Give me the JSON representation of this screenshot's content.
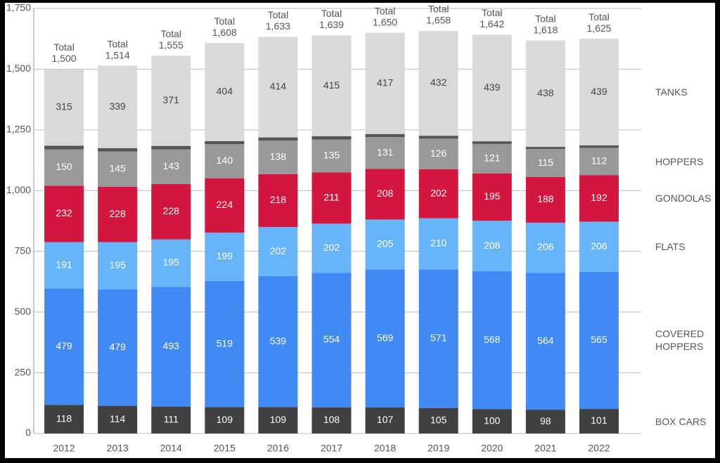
{
  "chart_data": {
    "type": "stacked_bar",
    "categories": [
      "2012",
      "2013",
      "2014",
      "2015",
      "2016",
      "2017",
      "2018",
      "2019",
      "2020",
      "2021",
      "2022"
    ],
    "series": [
      {
        "name": "BOX CARS",
        "color": "#404040",
        "label_color": "#ffffff",
        "values": [
          118,
          114,
          111,
          109,
          109,
          108,
          107,
          105,
          100,
          98,
          101
        ]
      },
      {
        "name": "COVERED HOPPERS",
        "color": "#4189f5",
        "label_color": "#ffffff",
        "values": [
          479,
          479,
          493,
          519,
          539,
          554,
          569,
          571,
          568,
          564,
          565
        ]
      },
      {
        "name": "FLATS",
        "color": "#68b4f8",
        "label_color": "#ffffff",
        "values": [
          191,
          195,
          195,
          199,
          202,
          202,
          205,
          210,
          208,
          206,
          206
        ]
      },
      {
        "name": "GONDOLAS",
        "color": "#d2163f",
        "label_color": "#ffffff",
        "values": [
          232,
          228,
          228,
          224,
          218,
          211,
          208,
          202,
          195,
          188,
          192
        ]
      },
      {
        "name": "HOPPERS",
        "color": "#999999",
        "label_color": "#ffffff",
        "values": [
          150,
          145,
          143,
          140,
          138,
          135,
          131,
          126,
          121,
          115,
          112
        ]
      },
      {
        "color": "#555555",
        "values": [
          15,
          14,
          14,
          13,
          13,
          14,
          13,
          12,
          11,
          9,
          10
        ]
      },
      {
        "name": "TANKS",
        "color": "#d9d9d9",
        "label_color": "#444444",
        "values": [
          315,
          339,
          371,
          404,
          414,
          415,
          417,
          432,
          439,
          438,
          439
        ]
      }
    ],
    "total_label": "Total",
    "totals": [
      1500,
      1514,
      1555,
      1608,
      1633,
      1639,
      1650,
      1658,
      1642,
      1618,
      1625
    ],
    "totals_labels": [
      "1,500",
      "1,514",
      "1,555",
      "1,608",
      "1,633",
      "1,639",
      "1,650",
      "1,658",
      "1,642",
      "1,618",
      "1,625"
    ],
    "ylim": [
      0,
      1750
    ],
    "yticks": [
      0,
      250,
      500,
      750,
      {
        "value": 1000,
        "label": "1,000"
      },
      {
        "value": 1250,
        "label": "1,250"
      },
      {
        "value": 1500,
        "label": "1,500"
      },
      {
        "value": 1750,
        "label": "1,750"
      }
    ],
    "grid": true
  }
}
